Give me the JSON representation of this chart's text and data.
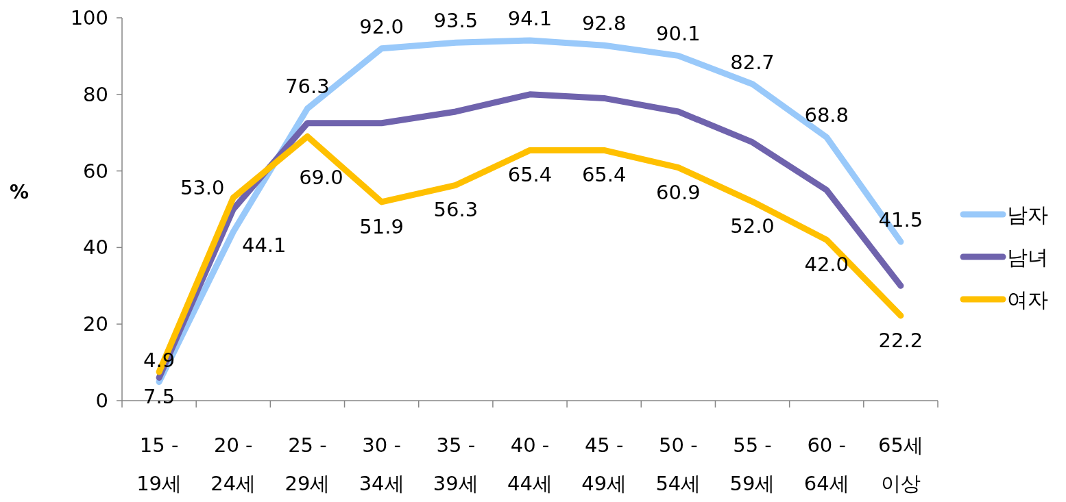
{
  "chart_data": {
    "type": "line",
    "ylabel": "%",
    "categories": [
      "15 - 19세",
      "20 - 24세",
      "25 - 29세",
      "30 - 34세",
      "35 - 39세",
      "40 - 44세",
      "45 - 49세",
      "50 - 54세",
      "55 - 59세",
      "60 - 64세",
      "65세 이상"
    ],
    "series": [
      {
        "name": "남자",
        "color": "#99c9fa",
        "values": [
          4.9,
          44.1,
          76.3,
          92.0,
          93.5,
          94.1,
          92.8,
          90.1,
          82.7,
          68.8,
          41.5
        ],
        "value_labels": [
          "4.9",
          "44.1",
          "76.3",
          "92.0",
          "93.5",
          "94.1",
          "92.8",
          "90.1",
          "82.7",
          "68.8",
          "41.5"
        ]
      },
      {
        "name": "남녀",
        "color": "#6f63ad",
        "values": [
          6,
          50,
          72.5,
          72.5,
          75.5,
          80,
          79,
          75.5,
          67.5,
          55,
          30
        ]
      },
      {
        "name": "여자",
        "color": "#ffc000",
        "values": [
          7.5,
          53.0,
          69.0,
          51.9,
          56.3,
          65.4,
          65.4,
          60.9,
          52.0,
          42.0,
          22.2
        ],
        "value_labels": [
          "7.5",
          "53.0",
          "69.0",
          "51.9",
          "56.3",
          "65.4",
          "65.4",
          "60.9",
          "52.0",
          "42.0",
          "22.2"
        ]
      }
    ],
    "ylim": [
      0,
      100
    ],
    "yticks": [
      0,
      20,
      40,
      60,
      80,
      100
    ],
    "grid": false,
    "legend": "right",
    "marker": "none",
    "line_style": "solid"
  }
}
